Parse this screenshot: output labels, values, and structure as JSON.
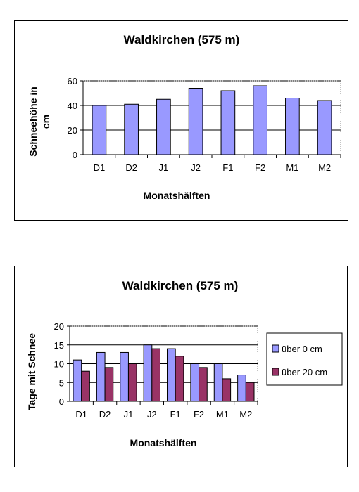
{
  "chart_data": [
    {
      "type": "bar",
      "title": "Waldkirchen (575 m)",
      "xlabel": "Monatshälften",
      "ylabel": "Schneehöhe in cm",
      "categories": [
        "D1",
        "D2",
        "J1",
        "J2",
        "F1",
        "F2",
        "M1",
        "M2"
      ],
      "values": [
        40,
        41,
        45,
        54,
        52,
        56,
        46,
        44
      ],
      "ylim": [
        0,
        60
      ],
      "yticks": [
        "0",
        "20",
        "40",
        "60"
      ],
      "grid": true,
      "colors": {
        "bar": "#9999ff"
      }
    },
    {
      "type": "bar",
      "title": "Waldkirchen (575 m)",
      "xlabel": "Monatshälften",
      "ylabel": "Tage mit Schnee",
      "categories": [
        "D1",
        "D2",
        "J1",
        "J2",
        "F1",
        "F2",
        "M1",
        "M2"
      ],
      "series": [
        {
          "name": "über 0 cm",
          "values": [
            11,
            13,
            13,
            15,
            14,
            10,
            10,
            7
          ],
          "color": "#9999ff"
        },
        {
          "name": "über 20 cm",
          "values": [
            8,
            9,
            10,
            14,
            12,
            9,
            6,
            5
          ],
          "color": "#993366"
        }
      ],
      "ylim": [
        0,
        20
      ],
      "yticks": [
        "0",
        "5",
        "10",
        "15",
        "20"
      ],
      "grid": true,
      "legend": "right"
    }
  ]
}
